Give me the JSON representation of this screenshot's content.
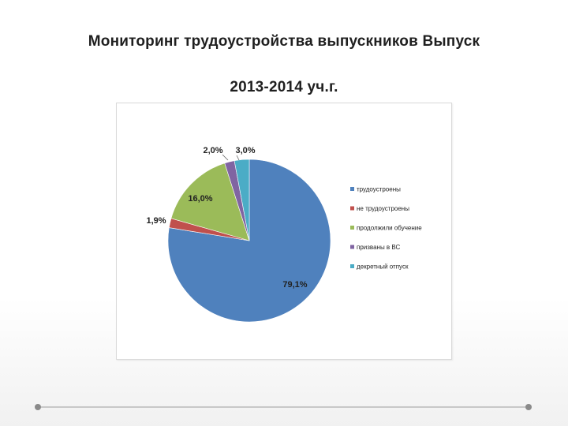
{
  "slide": {
    "title_line1": "Мониторинг трудоустройства выпускников Выпуск",
    "title_line2": "2013-2014 уч.г."
  },
  "chart_data": {
    "type": "pie",
    "legend_position": "right",
    "slices": [
      {
        "label": "трудоустроены",
        "value": 79.1,
        "display": "79,1%",
        "color": "#4f81bd"
      },
      {
        "label": "не трудоустроены",
        "value": 1.9,
        "display": "1,9%",
        "color": "#c0504d"
      },
      {
        "label": "продолжили обучение",
        "value": 16.0,
        "display": "16,0%",
        "color": "#9bbb59"
      },
      {
        "label": "призваны в ВС",
        "value": 2.0,
        "display": "2,0%",
        "color": "#8064a2"
      },
      {
        "label": "декретный отпуск",
        "value": 3.0,
        "display": "3,0%",
        "color": "#4bacc6"
      }
    ]
  }
}
